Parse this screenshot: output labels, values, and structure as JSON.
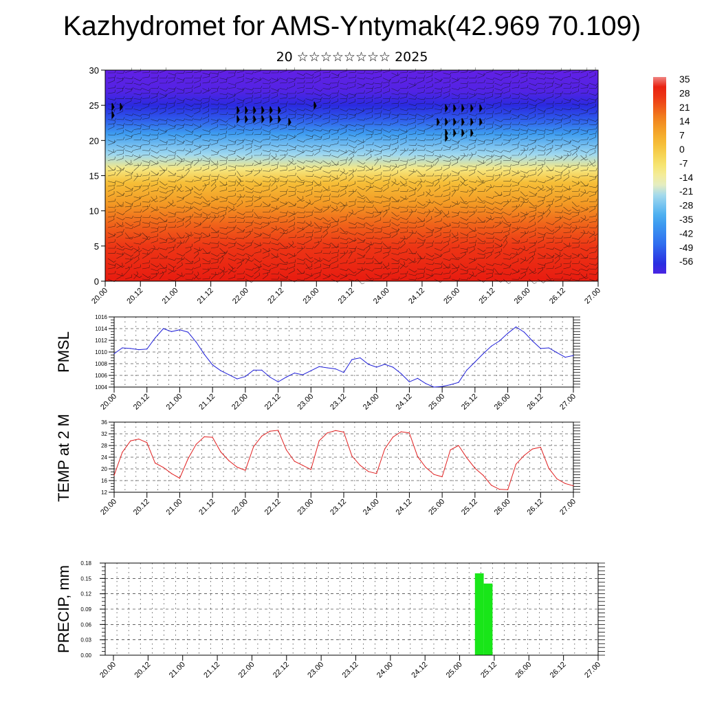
{
  "title": "Kazhydromet for AMS-Yntymak(42.969 70.109)",
  "subtitle": "20 ☆☆☆☆☆☆☆☆ 2025",
  "time_ticks": [
    "20.00",
    "20.12",
    "21.00",
    "21.12",
    "22.00",
    "22.12",
    "23.00",
    "23.12",
    "24.00",
    "24.12",
    "25.00",
    "25.12",
    "26.00",
    "26.12",
    "27.00"
  ],
  "colors": {
    "pmsl_line": "#1f1fd8",
    "temp_line": "#e02020",
    "precip_bar": "#19e619",
    "grid": "#000000"
  },
  "chart_data": [
    {
      "type": "heatmap",
      "name": "cross-section",
      "ylim": [
        0,
        30
      ],
      "yticks": [
        0,
        5,
        10,
        15,
        20,
        25,
        30
      ],
      "colorbar_labels": [
        "35",
        "28",
        "21",
        "14",
        "7",
        "0",
        "-7",
        "-14",
        "-21",
        "-28",
        "-35",
        "-42",
        "-49",
        "-56"
      ],
      "levels": [
        0,
        5,
        8,
        11,
        14,
        16,
        18,
        21,
        23,
        25,
        27,
        30
      ],
      "level_values": [
        32,
        26,
        20,
        12,
        4,
        -8,
        -20,
        -33,
        -45,
        -52,
        -57,
        -59
      ],
      "wind_barbs": "overlaid"
    },
    {
      "type": "line",
      "name": "pmsl",
      "ylabel": "PMSL",
      "ylim": [
        1004,
        1016
      ],
      "yticks": [
        1004,
        1006,
        1008,
        1010,
        1012,
        1014,
        1016
      ],
      "x": [
        0,
        0.125,
        0.25,
        0.375,
        0.5,
        0.625,
        0.75,
        0.875,
        1,
        1.125,
        1.25,
        1.375,
        1.5,
        1.625,
        1.75,
        1.875,
        2,
        2.125,
        2.25,
        2.375,
        2.5,
        2.625,
        2.75,
        2.875,
        3,
        3.125,
        3.25,
        3.375,
        3.5,
        3.625,
        3.75,
        3.875,
        4,
        4.125,
        4.25,
        4.375,
        4.5,
        4.625,
        4.75,
        4.875,
        5,
        5.125,
        5.25,
        5.375,
        5.5,
        5.625,
        5.75,
        5.875,
        6,
        6.125,
        6.25,
        6.375,
        6.5,
        6.625,
        6.75,
        6.875,
        7
      ],
      "values": [
        1009.7,
        1010.7,
        1010.6,
        1010.4,
        1010.5,
        1012.4,
        1014.0,
        1013.5,
        1013.8,
        1013.4,
        1011.7,
        1009.6,
        1007.8,
        1006.8,
        1006.1,
        1005.4,
        1005.8,
        1006.9,
        1006.9,
        1005.7,
        1004.9,
        1005.7,
        1006.4,
        1006.1,
        1006.8,
        1007.5,
        1007.3,
        1007.1,
        1006.5,
        1008.7,
        1009.0,
        1007.9,
        1007.4,
        1007.9,
        1007.4,
        1006.3,
        1004.9,
        1005.5,
        1004.6,
        1004.0,
        1004.1,
        1004.4,
        1004.8,
        1006.9,
        1008.3,
        1009.7,
        1011.0,
        1011.9,
        1013.2,
        1014.3,
        1013.4,
        1011.9,
        1010.6,
        1010.7,
        1009.9,
        1009.1,
        1009.4
      ]
    },
    {
      "type": "line",
      "name": "temp",
      "ylabel": "TEMP at 2 M",
      "ylim": [
        12,
        36
      ],
      "yticks": [
        12,
        16,
        20,
        24,
        28,
        32,
        36
      ],
      "x": [
        0,
        0.125,
        0.25,
        0.375,
        0.5,
        0.625,
        0.75,
        0.875,
        1,
        1.125,
        1.25,
        1.375,
        1.5,
        1.625,
        1.75,
        1.875,
        2,
        2.125,
        2.25,
        2.375,
        2.5,
        2.625,
        2.75,
        2.875,
        3,
        3.125,
        3.25,
        3.375,
        3.5,
        3.625,
        3.75,
        3.875,
        4,
        4.125,
        4.25,
        4.375,
        4.5,
        4.625,
        4.75,
        4.875,
        5,
        5.125,
        5.25,
        5.375,
        5.5,
        5.625,
        5.75,
        5.875,
        6,
        6.125,
        6.25,
        6.375,
        6.5,
        6.625,
        6.75,
        6.875,
        7
      ],
      "values": [
        17.8,
        25.7,
        29.6,
        30.2,
        29.0,
        22.0,
        20.5,
        18.4,
        16.8,
        23.4,
        28.4,
        31.0,
        30.8,
        25.8,
        22.8,
        20.6,
        19.5,
        27.6,
        31.2,
        32.9,
        33.2,
        26.5,
        22.6,
        21.2,
        19.8,
        29.6,
        32.3,
        33.1,
        32.6,
        24.4,
        21.2,
        19.1,
        18.4,
        26.8,
        30.9,
        32.7,
        32.3,
        24.2,
        20.5,
        18.1,
        17.3,
        26.5,
        28.0,
        23.8,
        20.2,
        17.8,
        14.4,
        13.0,
        12.9,
        21.6,
        24.6,
        26.8,
        27.4,
        20.2,
        16.6,
        15.0,
        14.2
      ]
    },
    {
      "type": "bar",
      "name": "precip",
      "ylabel": "PRECIP, mm",
      "ylim": [
        0,
        0.18
      ],
      "yticks": [
        "0.00",
        "0.03",
        "0.06",
        "0.09",
        "0.12",
        "0.15",
        "0.18"
      ],
      "bars": [
        {
          "x0": 5.25,
          "x1": 5.375,
          "value": 0.16
        },
        {
          "x0": 5.375,
          "x1": 5.5,
          "value": 0.14
        }
      ]
    }
  ]
}
